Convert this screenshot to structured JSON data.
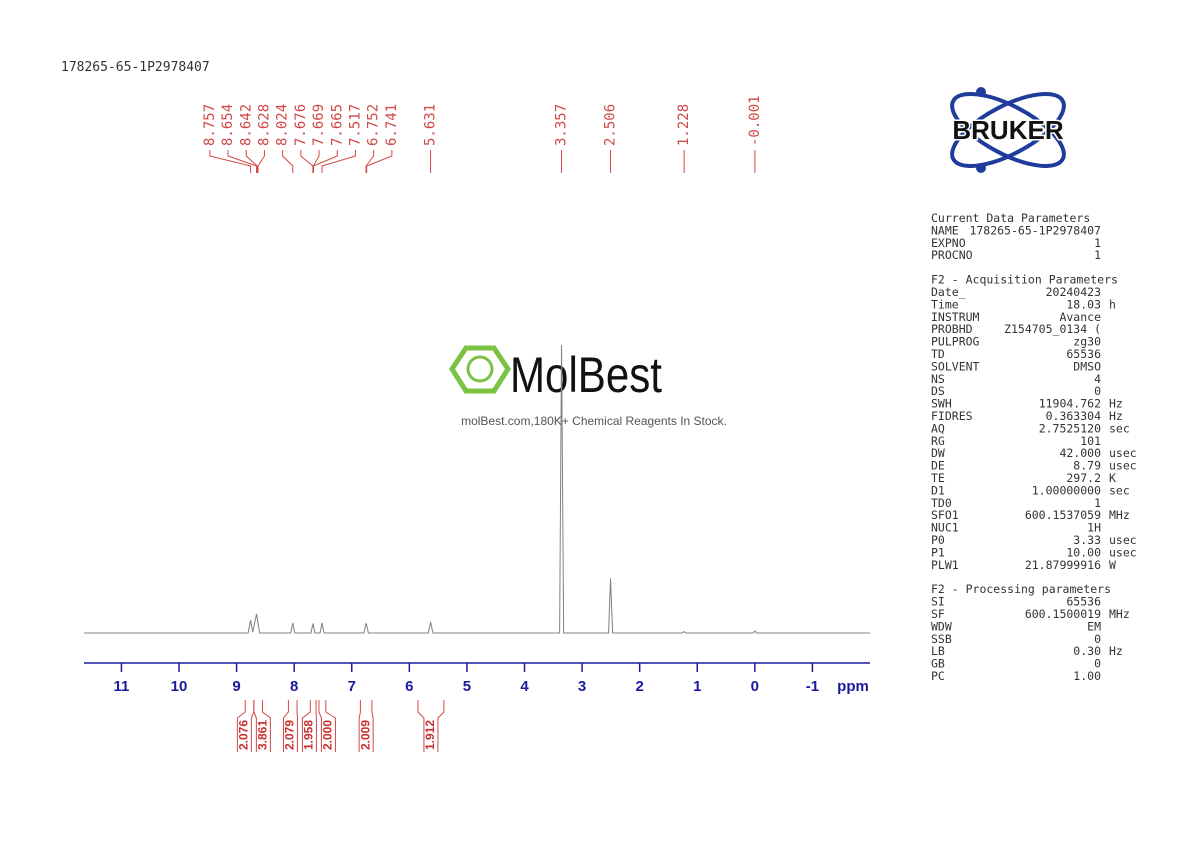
{
  "header": {
    "title": "178265-65-1P2978407"
  },
  "watermark": {
    "brand": "MolBest",
    "tagline": "molBest.com,180K+ Chemical Reagents In Stock."
  },
  "logo": {
    "text": "BRUKER"
  },
  "chart_data": {
    "type": "line",
    "color": "#808080",
    "x": [
      11.65,
      8.8,
      8.757,
      8.72,
      8.654,
      8.6,
      8.06,
      8.024,
      7.99,
      7.71,
      7.672,
      7.64,
      7.55,
      7.517,
      7.48,
      6.79,
      6.75,
      6.71,
      5.67,
      5.631,
      5.59,
      3.39,
      3.357,
      3.32,
      2.54,
      2.506,
      2.47,
      1.26,
      1.228,
      1.19,
      0.03,
      -0.001,
      -0.03,
      -2.0
    ],
    "y": [
      0,
      0,
      4.5,
      0.3,
      6.6,
      0,
      0,
      3.5,
      0,
      0,
      3.3,
      0,
      0,
      3.5,
      0,
      0,
      3.4,
      0,
      0,
      3.8,
      0,
      0,
      100,
      0,
      0,
      19,
      0,
      0,
      0.5,
      0,
      0,
      0.7,
      0,
      0
    ],
    "xlim": [
      11.65,
      -2.0
    ],
    "ylim": [
      0,
      100
    ],
    "xticks": [
      11,
      10,
      9,
      8,
      7,
      6,
      5,
      4,
      3,
      2,
      1,
      0,
      -1
    ],
    "xlabel": "ppm",
    "peak_labels": [
      8.757,
      8.654,
      8.642,
      8.628,
      8.024,
      7.676,
      7.669,
      7.665,
      7.517,
      6.752,
      6.741,
      5.631,
      3.357,
      2.506,
      1.228,
      -0.001
    ],
    "integrals": [
      {
        "value": 2.076,
        "from": 8.85,
        "to": 8.7
      },
      {
        "value": 3.861,
        "from": 8.7,
        "to": 8.55
      },
      {
        "value": 2.079,
        "from": 8.1,
        "to": 7.95
      },
      {
        "value": 1.958,
        "from": 7.72,
        "to": 7.62
      },
      {
        "value": 2,
        "label": "2.000",
        "from": 7.57,
        "to": 7.45
      },
      {
        "value": 2.009,
        "from": 6.85,
        "to": 6.65
      },
      {
        "value": 1.912,
        "from": 5.85,
        "to": 5.4
      }
    ]
  },
  "parameters": [
    {
      "title": "Current Data Parameters",
      "rows": [
        [
          "NAME",
          "178265-65-1P2978407"
        ],
        [
          "EXPNO",
          "1"
        ],
        [
          "PROCNO",
          "1"
        ]
      ]
    },
    {
      "title": "F2 - Acquisition Parameters",
      "rows": [
        [
          "Date_",
          "20240423"
        ],
        [
          "Time",
          "18.03",
          "h"
        ],
        [
          "INSTRUM",
          "Avance"
        ],
        [
          "PROBHD",
          "Z154705_0134 ("
        ],
        [
          "PULPROG",
          "zg30"
        ],
        [
          "TD",
          "65536"
        ],
        [
          "SOLVENT",
          "DMSO"
        ],
        [
          "NS",
          "4"
        ],
        [
          "DS",
          "0"
        ],
        [
          "SWH",
          "11904.762",
          "Hz"
        ],
        [
          "FIDRES",
          "0.363304",
          "Hz"
        ],
        [
          "AQ",
          "2.7525120",
          "sec"
        ],
        [
          "RG",
          "101"
        ],
        [
          "DW",
          "42.000",
          "usec"
        ],
        [
          "DE",
          "8.79",
          "usec"
        ],
        [
          "TE",
          "297.2",
          "K"
        ],
        [
          "D1",
          "1.00000000",
          "sec"
        ],
        [
          "TD0",
          "1"
        ],
        [
          "SFO1",
          "600.1537059",
          "MHz"
        ],
        [
          "NUC1",
          "1H"
        ],
        [
          "P0",
          "3.33",
          "usec"
        ],
        [
          "P1",
          "10.00",
          "usec"
        ],
        [
          "PLW1",
          "21.87999916",
          "W"
        ]
      ]
    },
    {
      "title": "F2 - Processing parameters",
      "rows": [
        [
          "SI",
          "65536"
        ],
        [
          "SF",
          "600.1500019",
          "MHz"
        ],
        [
          "WDW",
          "EM"
        ],
        [
          "SSB",
          "0"
        ],
        [
          "LB",
          "0.30",
          "Hz"
        ],
        [
          "GB",
          "0"
        ],
        [
          "PC",
          "1.00"
        ]
      ]
    }
  ]
}
